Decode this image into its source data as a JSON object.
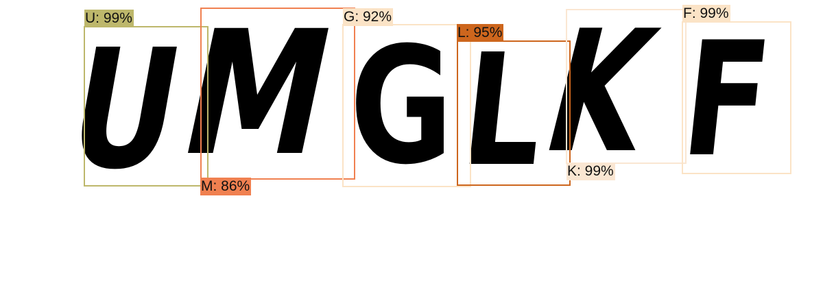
{
  "detections": [
    {
      "label": "U: 99%",
      "char": "U",
      "color": "#bdb76b"
    },
    {
      "label": "M: 86%",
      "char": "M",
      "color": "#f08050"
    },
    {
      "label": "G: 92%",
      "char": "G",
      "color": "#fbe3c6"
    },
    {
      "label": "L: 95%",
      "char": "L",
      "color": "#cd661d"
    },
    {
      "label": "K: 99%",
      "char": "K",
      "color": "#fae6d2"
    },
    {
      "label": "F: 99%",
      "char": "F",
      "color": "#fbe3c6"
    }
  ]
}
